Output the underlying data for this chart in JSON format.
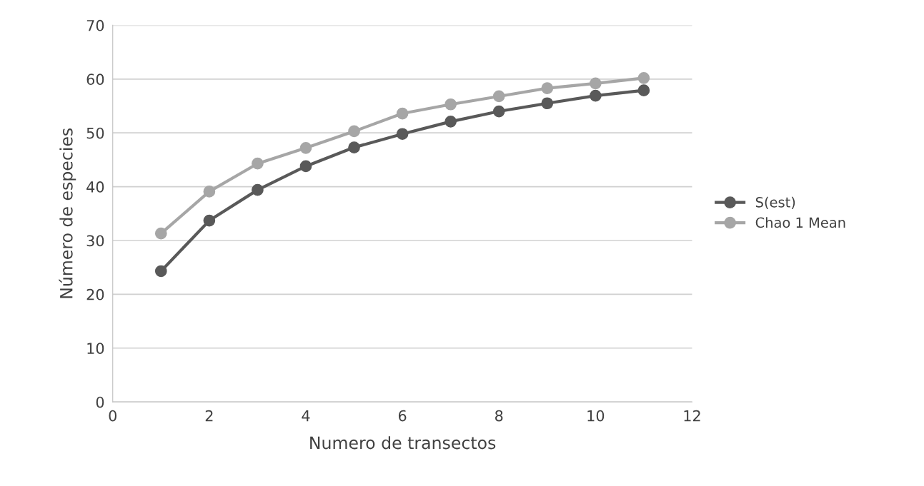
{
  "chart_data": {
    "type": "line",
    "xlabel": "Numero de transectos",
    "ylabel": "Número de especies",
    "x": [
      1,
      2,
      3,
      4,
      5,
      6,
      7,
      8,
      9,
      10,
      11
    ],
    "series": [
      {
        "name": "S(est)",
        "color": "#595959",
        "values": [
          24.3,
          33.7,
          39.4,
          43.8,
          47.3,
          49.8,
          52.1,
          54.0,
          55.5,
          56.9,
          57.9
        ]
      },
      {
        "name": "Chao 1 Mean",
        "color": "#a6a6a6",
        "values": [
          31.3,
          39.1,
          44.3,
          47.2,
          50.3,
          53.6,
          55.3,
          56.8,
          58.3,
          59.2,
          60.2
        ]
      }
    ],
    "xlim": [
      0,
      12
    ],
    "xticks": [
      0,
      2,
      4,
      6,
      8,
      10,
      12
    ],
    "ylim": [
      0,
      70
    ],
    "yticks": [
      0,
      10,
      20,
      30,
      40,
      50,
      60,
      70
    ],
    "grid": "y",
    "legend": "right",
    "marker": "circle",
    "line_style": "solid"
  }
}
